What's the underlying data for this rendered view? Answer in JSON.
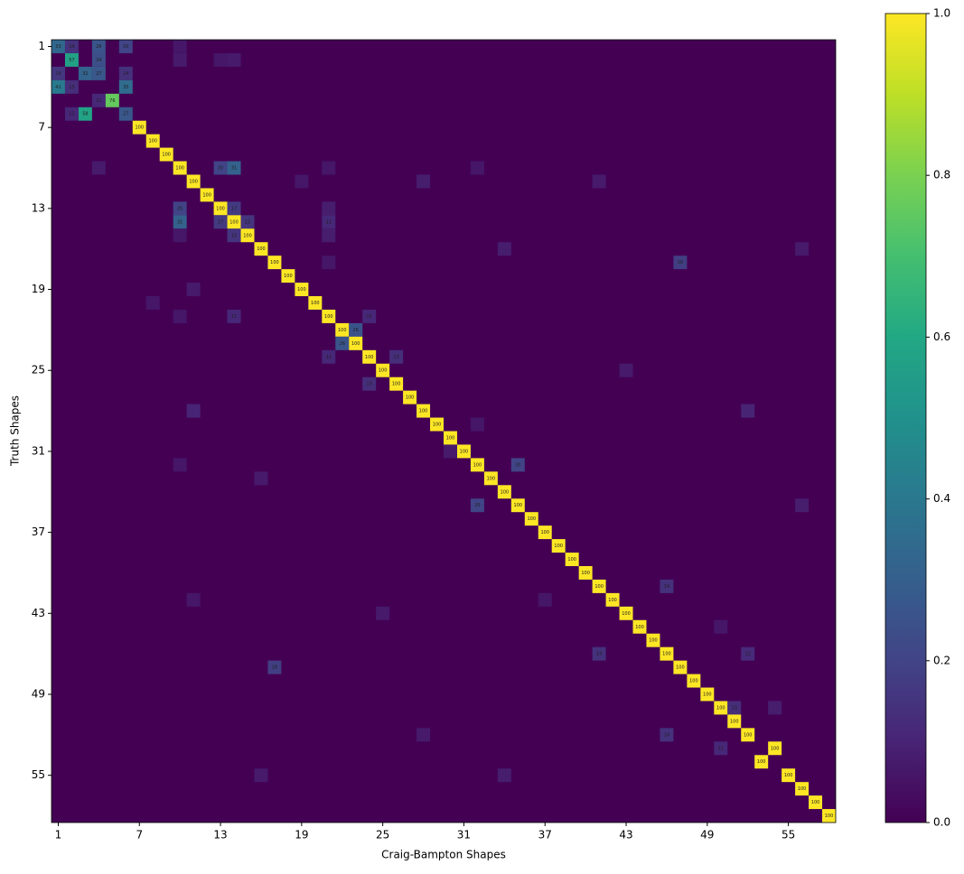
{
  "chart_data": {
    "type": "heatmap",
    "x_label": "Craig-Bampton Shapes",
    "y_label": "Truth Shapes",
    "xlim": [
      0.5,
      58.5
    ],
    "ylim": [
      58.5,
      0.5
    ],
    "xticks": [
      1,
      7,
      13,
      19,
      25,
      31,
      37,
      43,
      49,
      55
    ],
    "yticks": [
      1,
      7,
      13,
      19,
      25,
      31,
      37,
      43,
      49,
      55
    ],
    "zlim": [
      0,
      1
    ],
    "colorbar_ticks": [
      {
        "value": 0,
        "label": "0.0"
      },
      {
        "value": 0.2,
        "label": "0.2"
      },
      {
        "value": 0.4,
        "label": "0.4"
      },
      {
        "value": 0.6,
        "label": "0.6"
      },
      {
        "value": 0.8,
        "label": "0.8"
      },
      {
        "value": 1,
        "label": "1.0"
      }
    ],
    "colormap": [
      "#440154",
      "#482475",
      "#414487",
      "#355f8d",
      "#2a788e",
      "#21918c",
      "#22a884",
      "#44bf70",
      "#7ad151",
      "#bddf26",
      "#fde725"
    ],
    "cells": [
      {
        "row": 1,
        "col": 1,
        "value": 0.33,
        "label": "33"
      },
      {
        "row": 1,
        "col": 2,
        "value": 0.14,
        "label": "14"
      },
      {
        "row": 1,
        "col": 4,
        "value": 0.26,
        "label": "26"
      },
      {
        "row": 1,
        "col": 6,
        "value": 0.2,
        "label": "20"
      },
      {
        "row": 2,
        "col": 2,
        "value": 0.57,
        "label": "57"
      },
      {
        "row": 2,
        "col": 4,
        "value": 0.24,
        "label": "24"
      },
      {
        "row": 3,
        "col": 1,
        "value": 0.16,
        "label": "16"
      },
      {
        "row": 3,
        "col": 3,
        "value": 0.32,
        "label": "32"
      },
      {
        "row": 3,
        "col": 4,
        "value": 0.27,
        "label": "27"
      },
      {
        "row": 3,
        "col": 6,
        "value": 0.14,
        "label": "14"
      },
      {
        "row": 4,
        "col": 1,
        "value": 0.41,
        "label": "41"
      },
      {
        "row": 4,
        "col": 2,
        "value": 0.13,
        "label": "13"
      },
      {
        "row": 4,
        "col": 6,
        "value": 0.35,
        "label": "35"
      },
      {
        "row": 5,
        "col": 4,
        "value": 0.11,
        "label": "11"
      },
      {
        "row": 5,
        "col": 5,
        "value": 0.76,
        "label": "76"
      },
      {
        "row": 6,
        "col": 2,
        "value": 0.11,
        "label": "11"
      },
      {
        "row": 6,
        "col": 3,
        "value": 0.58,
        "label": "58"
      },
      {
        "row": 6,
        "col": 6,
        "value": 0.27,
        "label": "27"
      },
      {
        "row": 7,
        "col": 7,
        "value": 1,
        "label": "100"
      },
      {
        "row": 8,
        "col": 8,
        "value": 1,
        "label": "100"
      },
      {
        "row": 9,
        "col": 9,
        "value": 1,
        "label": "100"
      },
      {
        "row": 10,
        "col": 10,
        "value": 1,
        "label": "100"
      },
      {
        "row": 10,
        "col": 13,
        "value": 0.2,
        "label": "20"
      },
      {
        "row": 10,
        "col": 14,
        "value": 0.31,
        "label": "31"
      },
      {
        "row": 11,
        "col": 11,
        "value": 1,
        "label": "100"
      },
      {
        "row": 12,
        "col": 12,
        "value": 1,
        "label": "100"
      },
      {
        "row": 13,
        "col": 10,
        "value": 0.2,
        "label": "20"
      },
      {
        "row": 13,
        "col": 13,
        "value": 1,
        "label": "100"
      },
      {
        "row": 13,
        "col": 14,
        "value": 0.17,
        "label": "17"
      },
      {
        "row": 14,
        "col": 10,
        "value": 0.31,
        "label": "31"
      },
      {
        "row": 14,
        "col": 13,
        "value": 0.17,
        "label": "17"
      },
      {
        "row": 14,
        "col": 14,
        "value": 1,
        "label": "100"
      },
      {
        "row": 14,
        "col": 15,
        "value": 0.15,
        "label": "15"
      },
      {
        "row": 14,
        "col": 21,
        "value": 0.11,
        "label": "11"
      },
      {
        "row": 15,
        "col": 14,
        "value": 0.15,
        "label": "15"
      },
      {
        "row": 15,
        "col": 15,
        "value": 1,
        "label": "100"
      },
      {
        "row": 16,
        "col": 16,
        "value": 1,
        "label": "100"
      },
      {
        "row": 17,
        "col": 17,
        "value": 1,
        "label": "100"
      },
      {
        "row": 17,
        "col": 47,
        "value": 0.18,
        "label": "18"
      },
      {
        "row": 18,
        "col": 18,
        "value": 1,
        "label": "100"
      },
      {
        "row": 19,
        "col": 19,
        "value": 1,
        "label": "100"
      },
      {
        "row": 20,
        "col": 20,
        "value": 1,
        "label": "100"
      },
      {
        "row": 21,
        "col": 14,
        "value": 0.11,
        "label": "11"
      },
      {
        "row": 21,
        "col": 21,
        "value": 1,
        "label": "100"
      },
      {
        "row": 21,
        "col": 24,
        "value": 0.11,
        "label": "11"
      },
      {
        "row": 22,
        "col": 22,
        "value": 1,
        "label": "100"
      },
      {
        "row": 22,
        "col": 23,
        "value": 0.26,
        "label": "26"
      },
      {
        "row": 23,
        "col": 22,
        "value": 0.26,
        "label": "26"
      },
      {
        "row": 23,
        "col": 23,
        "value": 1,
        "label": "100"
      },
      {
        "row": 24,
        "col": 21,
        "value": 0.11,
        "label": "11"
      },
      {
        "row": 24,
        "col": 24,
        "value": 1,
        "label": "100"
      },
      {
        "row": 24,
        "col": 26,
        "value": 0.13,
        "label": "13"
      },
      {
        "row": 25,
        "col": 25,
        "value": 1,
        "label": "100"
      },
      {
        "row": 26,
        "col": 24,
        "value": 0.13,
        "label": "13"
      },
      {
        "row": 26,
        "col": 26,
        "value": 1,
        "label": "100"
      },
      {
        "row": 27,
        "col": 27,
        "value": 1,
        "label": "100"
      },
      {
        "row": 28,
        "col": 28,
        "value": 1,
        "label": "100"
      },
      {
        "row": 29,
        "col": 29,
        "value": 1,
        "label": "100"
      },
      {
        "row": 30,
        "col": 30,
        "value": 1,
        "label": "100"
      },
      {
        "row": 31,
        "col": 31,
        "value": 1,
        "label": "100"
      },
      {
        "row": 32,
        "col": 32,
        "value": 1,
        "label": "100"
      },
      {
        "row": 32,
        "col": 35,
        "value": 0.2,
        "label": "20"
      },
      {
        "row": 33,
        "col": 33,
        "value": 1,
        "label": "100"
      },
      {
        "row": 34,
        "col": 34,
        "value": 1,
        "label": "100"
      },
      {
        "row": 35,
        "col": 32,
        "value": 0.2,
        "label": "20"
      },
      {
        "row": 35,
        "col": 35,
        "value": 1,
        "label": "100"
      },
      {
        "row": 36,
        "col": 36,
        "value": 1,
        "label": "100"
      },
      {
        "row": 37,
        "col": 37,
        "value": 1,
        "label": "100"
      },
      {
        "row": 38,
        "col": 38,
        "value": 1,
        "label": "100"
      },
      {
        "row": 39,
        "col": 39,
        "value": 1,
        "label": "100"
      },
      {
        "row": 40,
        "col": 40,
        "value": 1,
        "label": "100"
      },
      {
        "row": 41,
        "col": 41,
        "value": 1,
        "label": "100"
      },
      {
        "row": 41,
        "col": 46,
        "value": 0.14,
        "label": "14"
      },
      {
        "row": 42,
        "col": 42,
        "value": 1,
        "label": "100"
      },
      {
        "row": 43,
        "col": 43,
        "value": 1,
        "label": "100"
      },
      {
        "row": 44,
        "col": 44,
        "value": 1,
        "label": "100"
      },
      {
        "row": 45,
        "col": 45,
        "value": 1,
        "label": "100"
      },
      {
        "row": 46,
        "col": 41,
        "value": 0.14,
        "label": "14"
      },
      {
        "row": 46,
        "col": 46,
        "value": 1,
        "label": "100"
      },
      {
        "row": 46,
        "col": 52,
        "value": 0.12,
        "label": "12"
      },
      {
        "row": 47,
        "col": 17,
        "value": 0.18,
        "label": "18"
      },
      {
        "row": 47,
        "col": 47,
        "value": 1,
        "label": "100"
      },
      {
        "row": 48,
        "col": 48,
        "value": 1,
        "label": "100"
      },
      {
        "row": 49,
        "col": 49,
        "value": 1,
        "label": "100"
      },
      {
        "row": 50,
        "col": 50,
        "value": 1,
        "label": "100"
      },
      {
        "row": 50,
        "col": 51,
        "value": 0.13,
        "label": "13"
      },
      {
        "row": 51,
        "col": 51,
        "value": 1,
        "label": "100"
      },
      {
        "row": 52,
        "col": 46,
        "value": 0.14,
        "label": "14"
      },
      {
        "row": 52,
        "col": 52,
        "value": 1,
        "label": "100"
      },
      {
        "row": 53,
        "col": 50,
        "value": 0.11,
        "label": "11"
      },
      {
        "row": 53,
        "col": 54,
        "value": 1,
        "label": "100"
      },
      {
        "row": 54,
        "col": 53,
        "value": 1,
        "label": "100"
      },
      {
        "row": 55,
        "col": 55,
        "value": 1,
        "label": "100"
      },
      {
        "row": 56,
        "col": 56,
        "value": 1,
        "label": "100"
      },
      {
        "row": 57,
        "col": 57,
        "value": 1,
        "label": "100"
      },
      {
        "row": 58,
        "col": 58,
        "value": 1,
        "label": "100"
      },
      {
        "row": 1,
        "col": 10,
        "value": 0.06
      },
      {
        "row": 2,
        "col": 10,
        "value": 0.07
      },
      {
        "row": 2,
        "col": 13,
        "value": 0.06
      },
      {
        "row": 2,
        "col": 14,
        "value": 0.07
      },
      {
        "row": 10,
        "col": 4,
        "value": 0.07
      },
      {
        "row": 10,
        "col": 21,
        "value": 0.06
      },
      {
        "row": 10,
        "col": 32,
        "value": 0.06
      },
      {
        "row": 11,
        "col": 19,
        "value": 0.06
      },
      {
        "row": 11,
        "col": 28,
        "value": 0.08
      },
      {
        "row": 11,
        "col": 41,
        "value": 0.07
      },
      {
        "row": 13,
        "col": 21,
        "value": 0.08
      },
      {
        "row": 15,
        "col": 10,
        "value": 0.06
      },
      {
        "row": 15,
        "col": 21,
        "value": 0.08
      },
      {
        "row": 16,
        "col": 34,
        "value": 0.08
      },
      {
        "row": 16,
        "col": 56,
        "value": 0.07
      },
      {
        "row": 17,
        "col": 21,
        "value": 0.06
      },
      {
        "row": 19,
        "col": 11,
        "value": 0.07
      },
      {
        "row": 20,
        "col": 8,
        "value": 0.06
      },
      {
        "row": 21,
        "col": 10,
        "value": 0.06
      },
      {
        "row": 25,
        "col": 43,
        "value": 0.07
      },
      {
        "row": 28,
        "col": 11,
        "value": 0.1
      },
      {
        "row": 28,
        "col": 52,
        "value": 0.1
      },
      {
        "row": 29,
        "col": 32,
        "value": 0.06
      },
      {
        "row": 31,
        "col": 30,
        "value": 0.07
      },
      {
        "row": 32,
        "col": 10,
        "value": 0.06
      },
      {
        "row": 33,
        "col": 16,
        "value": 0.07
      },
      {
        "row": 35,
        "col": 56,
        "value": 0.08
      },
      {
        "row": 42,
        "col": 11,
        "value": 0.06
      },
      {
        "row": 42,
        "col": 37,
        "value": 0.06
      },
      {
        "row": 43,
        "col": 25,
        "value": 0.07
      },
      {
        "row": 44,
        "col": 50,
        "value": 0.06
      },
      {
        "row": 50,
        "col": 54,
        "value": 0.08
      },
      {
        "row": 52,
        "col": 28,
        "value": 0.07
      },
      {
        "row": 55,
        "col": 16,
        "value": 0.07
      },
      {
        "row": 55,
        "col": 34,
        "value": 0.08
      }
    ]
  }
}
